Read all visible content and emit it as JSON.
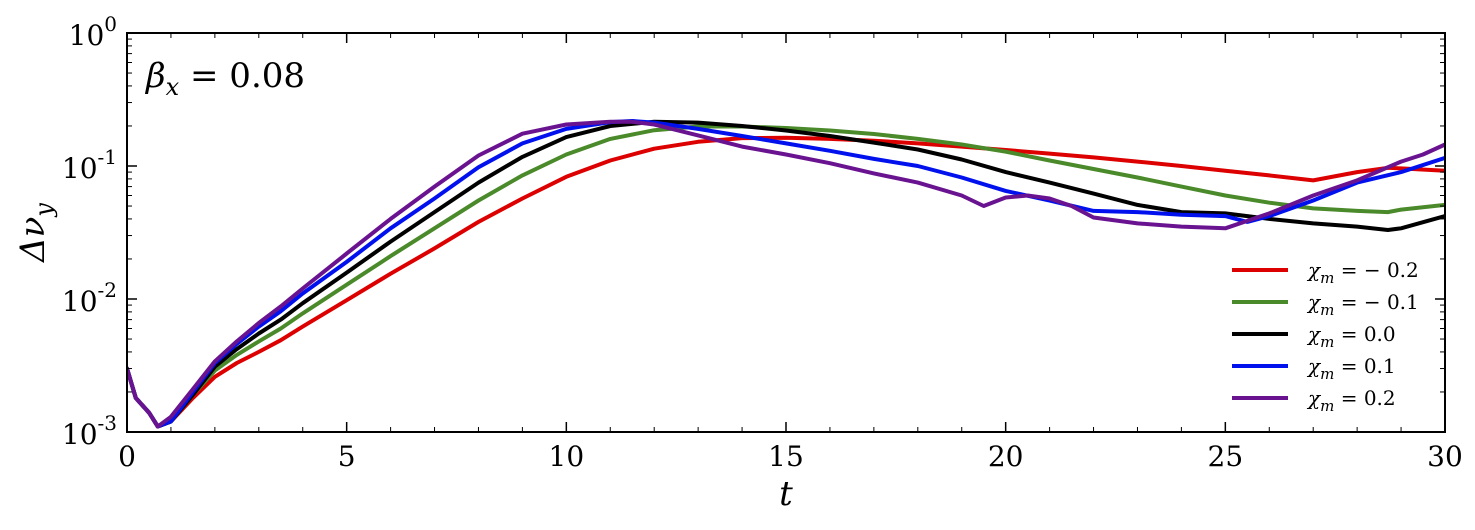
{
  "chart_data": {
    "type": "line",
    "title": "",
    "xlabel": "t",
    "ylabel": "Δν_y",
    "xlim": [
      0,
      30
    ],
    "ylim": [
      0.001,
      1
    ],
    "yscale": "log",
    "grid": false,
    "legend_position": "lower-right",
    "annotation": "β_x = 0.08",
    "x_ticks": [
      0,
      5,
      10,
      15,
      20,
      25,
      30
    ],
    "x_tick_labels": [
      "0",
      "5",
      "10",
      "15",
      "20",
      "25",
      "30"
    ],
    "y_ticks": [
      0.001,
      0.01,
      0.1,
      1
    ],
    "y_tick_labels": [
      {
        "base": "10",
        "exp": "-3"
      },
      {
        "base": "10",
        "exp": "-2"
      },
      {
        "base": "10",
        "exp": "-1"
      },
      {
        "base": "10",
        "exp": "0"
      }
    ],
    "series": [
      {
        "name": "χ_m = − 0.2",
        "color": "#dd0000",
        "x": [
          0,
          0.2,
          0.5,
          0.7,
          1.0,
          1.5,
          2.0,
          2.5,
          3.0,
          3.5,
          4,
          5,
          6,
          7,
          8,
          9,
          10,
          11,
          12,
          13,
          14,
          15,
          16,
          17,
          18,
          19,
          20,
          21,
          22,
          23,
          24,
          25,
          26,
          27,
          28,
          28.7,
          29,
          30
        ],
        "values": [
          0.003,
          0.0018,
          0.0014,
          0.0011,
          0.0012,
          0.0018,
          0.0026,
          0.0033,
          0.004,
          0.0049,
          0.0062,
          0.0098,
          0.0155,
          0.024,
          0.038,
          0.057,
          0.083,
          0.11,
          0.135,
          0.152,
          0.162,
          0.163,
          0.16,
          0.155,
          0.148,
          0.14,
          0.132,
          0.124,
          0.116,
          0.108,
          0.1,
          0.092,
          0.085,
          0.078,
          0.09,
          0.097,
          0.096,
          0.092
        ]
      },
      {
        "name": "χ_m = − 0.1",
        "color": "#4a8a2a",
        "x": [
          0,
          0.2,
          0.5,
          0.7,
          1.0,
          1.5,
          2.0,
          2.5,
          3.0,
          3.5,
          4,
          5,
          6,
          7,
          8,
          9,
          10,
          11,
          12,
          13,
          14,
          15,
          16,
          17,
          18,
          19,
          20,
          21,
          22,
          23,
          24,
          25,
          26,
          27,
          28,
          28.7,
          29,
          30
        ],
        "values": [
          0.003,
          0.0018,
          0.0014,
          0.0011,
          0.0012,
          0.0019,
          0.0029,
          0.0038,
          0.0048,
          0.006,
          0.0078,
          0.0128,
          0.021,
          0.034,
          0.055,
          0.085,
          0.122,
          0.16,
          0.186,
          0.198,
          0.198,
          0.193,
          0.185,
          0.174,
          0.16,
          0.145,
          0.128,
          0.11,
          0.095,
          0.082,
          0.07,
          0.06,
          0.053,
          0.048,
          0.046,
          0.045,
          0.047,
          0.051
        ]
      },
      {
        "name": "χ_m = 0.0",
        "color": "#000000",
        "x": [
          0,
          0.2,
          0.5,
          0.7,
          1.0,
          1.5,
          2.0,
          2.5,
          3.0,
          3.5,
          4,
          5,
          6,
          7,
          8,
          9,
          10,
          11,
          12,
          13,
          14,
          15,
          16,
          17,
          18,
          19,
          20,
          21,
          22,
          23,
          24,
          25,
          26,
          27,
          28,
          28.7,
          29,
          30
        ],
        "values": [
          0.003,
          0.0018,
          0.0014,
          0.0011,
          0.0012,
          0.0019,
          0.0031,
          0.0042,
          0.0055,
          0.007,
          0.0093,
          0.0158,
          0.027,
          0.045,
          0.075,
          0.117,
          0.165,
          0.2,
          0.215,
          0.212,
          0.2,
          0.185,
          0.168,
          0.15,
          0.133,
          0.112,
          0.09,
          0.075,
          0.062,
          0.051,
          0.045,
          0.044,
          0.04,
          0.037,
          0.035,
          0.033,
          0.034,
          0.042
        ]
      },
      {
        "name": "χ_m = 0.1",
        "color": "#0011ee",
        "x": [
          0,
          0.2,
          0.5,
          0.7,
          1.0,
          1.5,
          2.0,
          2.5,
          3.0,
          3.5,
          4,
          5,
          6,
          7,
          8,
          9,
          10,
          11,
          11.5,
          12,
          13,
          14,
          15,
          16,
          17,
          18,
          19,
          20,
          21,
          22,
          23,
          24,
          25,
          25.5,
          26,
          27,
          28,
          29,
          30
        ],
        "values": [
          0.003,
          0.0018,
          0.0014,
          0.0011,
          0.0012,
          0.002,
          0.0033,
          0.0046,
          0.0062,
          0.0081,
          0.011,
          0.019,
          0.034,
          0.057,
          0.098,
          0.148,
          0.19,
          0.214,
          0.218,
          0.212,
          0.19,
          0.168,
          0.148,
          0.13,
          0.113,
          0.1,
          0.082,
          0.065,
          0.055,
          0.046,
          0.045,
          0.043,
          0.042,
          0.038,
          0.042,
          0.055,
          0.075,
          0.09,
          0.115
        ]
      },
      {
        "name": "χ_m = 0.2",
        "color": "#6a1390",
        "x": [
          0,
          0.2,
          0.5,
          0.7,
          1.0,
          1.5,
          2.0,
          2.5,
          3.0,
          3.5,
          4,
          5,
          6,
          7,
          8,
          9,
          10,
          11,
          11.5,
          12,
          13,
          14,
          15,
          16,
          17,
          18,
          19,
          19.5,
          20,
          20.5,
          21,
          21.5,
          22,
          23,
          24,
          25,
          26,
          27,
          28,
          29,
          29.5,
          30
        ],
        "values": [
          0.003,
          0.0018,
          0.0014,
          0.0011,
          0.0013,
          0.0021,
          0.0034,
          0.0048,
          0.0066,
          0.0088,
          0.012,
          0.022,
          0.04,
          0.07,
          0.12,
          0.175,
          0.205,
          0.215,
          0.215,
          0.205,
          0.17,
          0.14,
          0.122,
          0.105,
          0.088,
          0.075,
          0.06,
          0.05,
          0.058,
          0.06,
          0.057,
          0.05,
          0.041,
          0.037,
          0.035,
          0.034,
          0.044,
          0.06,
          0.078,
          0.108,
          0.122,
          0.145
        ]
      }
    ]
  }
}
